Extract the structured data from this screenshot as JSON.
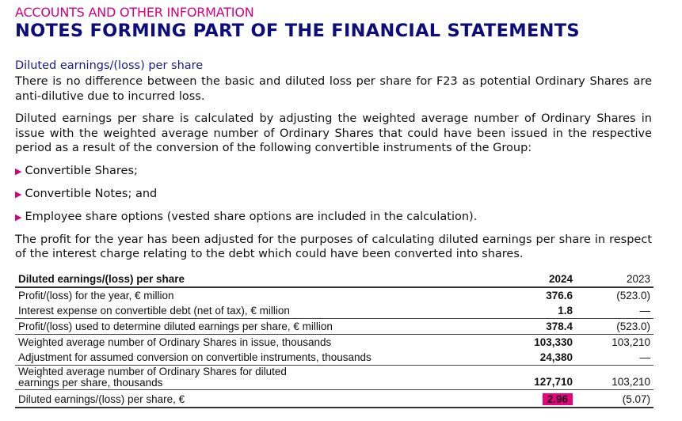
{
  "header": {
    "section": "ACCOUNTS AND OTHER INFORMATION",
    "title": "NOTES FORMING PART OF THE FINANCIAL STATEMENTS"
  },
  "body": {
    "subheading": "Diluted earnings/(loss) per share",
    "para1": "There is no difference between the basic and diluted loss per share for F23 as potential Ordinary Shares are anti-dilutive due to incurred loss.",
    "para2": "Diluted earnings per share is calculated by adjusting the weighted average number of Ordinary Shares in issue with the weighted average number of Ordinary Shares that could have been issued in the respective period as a result of the conversion of the following convertible instruments of the Group:",
    "bullets": [
      "Convertible Shares;",
      "Convertible Notes; and",
      "Employee share options (vested share options are included in the calculation)."
    ],
    "para3": "The profit for the year has been adjusted for the purposes of calculating diluted earnings per share in respect of the interest charge relating to the debt which could have been converted into shares."
  },
  "table": {
    "headers": [
      "Diluted earnings/(loss) per share",
      "2024",
      "2023"
    ],
    "rows": [
      [
        "Profit/(loss) for the year, € million",
        "376.6",
        "(523.0)"
      ],
      [
        "Interest expense on convertible debt (net of tax), € million",
        "1.8",
        "—"
      ],
      [
        "Profit/(loss) used to determine diluted earnings per share, € million",
        "378.4",
        "(523.0)"
      ],
      [
        "Weighted average number of Ordinary Shares in issue, thousands",
        "103,330",
        "103,210"
      ],
      [
        "Adjustment for assumed conversion on convertible instruments, thousands",
        "24,380",
        "—"
      ],
      [
        "Weighted average number of Ordinary Shares for diluted earnings per share, thousands",
        "127,710",
        "103,210"
      ],
      [
        "Diluted earnings/(loss) per share, €",
        "2.96",
        "(5.07)"
      ]
    ]
  },
  "colors": {
    "accent": "#d4007f",
    "title": "#0c0c7a",
    "highlight": "#e8007f"
  }
}
